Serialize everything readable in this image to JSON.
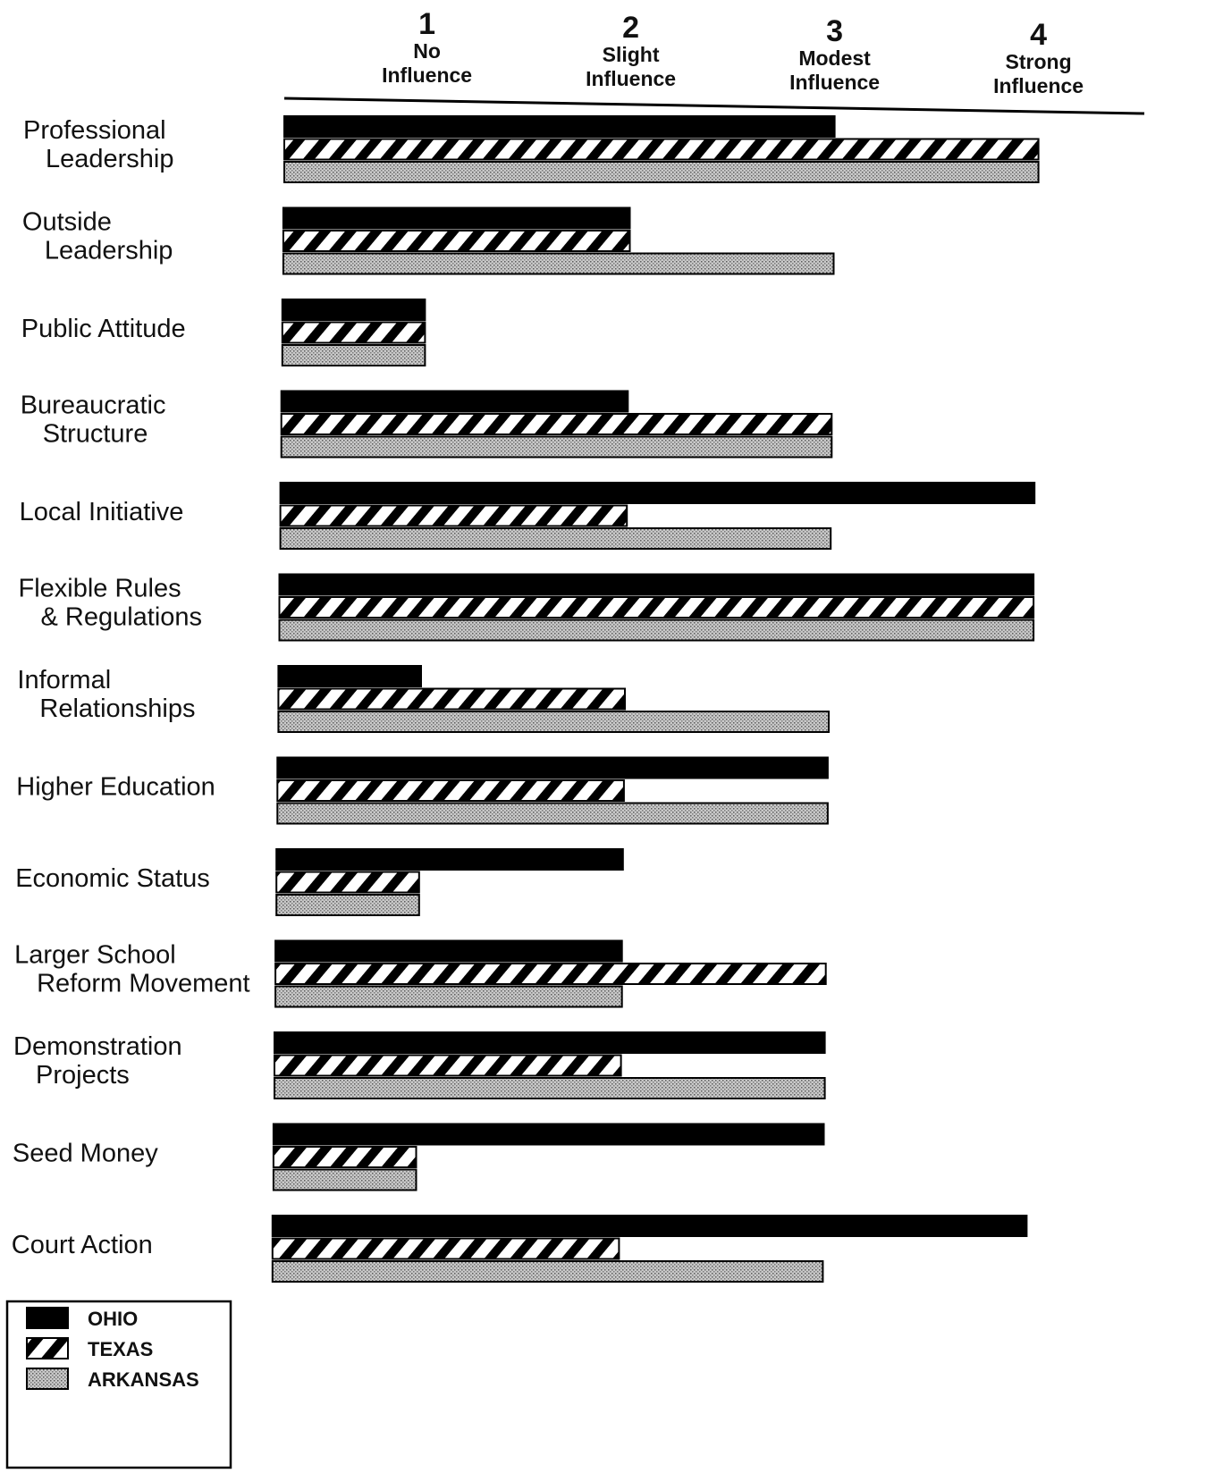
{
  "chart_data": {
    "type": "bar",
    "orientation": "horizontal",
    "categories": [
      [
        "Professional",
        "Leadership"
      ],
      [
        "Outside",
        "Leadership"
      ],
      [
        "Public Attitude"
      ],
      [
        "Bureaucratic",
        "Structure"
      ],
      [
        "Local Initiative"
      ],
      [
        "Flexible Rules",
        "& Regulations"
      ],
      [
        "Informal",
        "Relationships"
      ],
      [
        "Higher Education"
      ],
      [
        "Economic Status"
      ],
      [
        "Larger School",
        "Reform Movement"
      ],
      [
        "Demonstration",
        "Projects"
      ],
      [
        "Seed Money"
      ],
      [
        "Court Action"
      ]
    ],
    "series": [
      {
        "name": "OHIO",
        "pattern": "solid",
        "color": "#000000",
        "values": [
          3,
          2,
          1,
          2,
          4,
          4,
          1,
          3,
          2,
          2,
          3,
          3,
          4
        ]
      },
      {
        "name": "TEXAS",
        "pattern": "diagonal-hatch",
        "color": "#000000",
        "values": [
          4,
          2,
          1,
          3,
          2,
          4,
          2,
          2,
          1,
          3,
          2,
          1,
          2
        ]
      },
      {
        "name": "ARKANSAS",
        "pattern": "stipple",
        "color": "#aaaaaa",
        "values": [
          4,
          3,
          1,
          3,
          3,
          4,
          3,
          3,
          1,
          2,
          3,
          1,
          3
        ]
      }
    ],
    "x_ticks": [
      {
        "value": 1,
        "number": "1",
        "label": [
          "No",
          "Influence"
        ]
      },
      {
        "value": 2,
        "number": "2",
        "label": [
          "Slight",
          "Influence"
        ]
      },
      {
        "value": 3,
        "number": "3",
        "label": [
          "Modest",
          "Influence"
        ]
      },
      {
        "value": 4,
        "number": "4",
        "label": [
          "Strong",
          "Influence"
        ]
      }
    ],
    "xlim": [
      0.3,
      4.1
    ],
    "grid": false,
    "legend_position": "bottom-left"
  }
}
